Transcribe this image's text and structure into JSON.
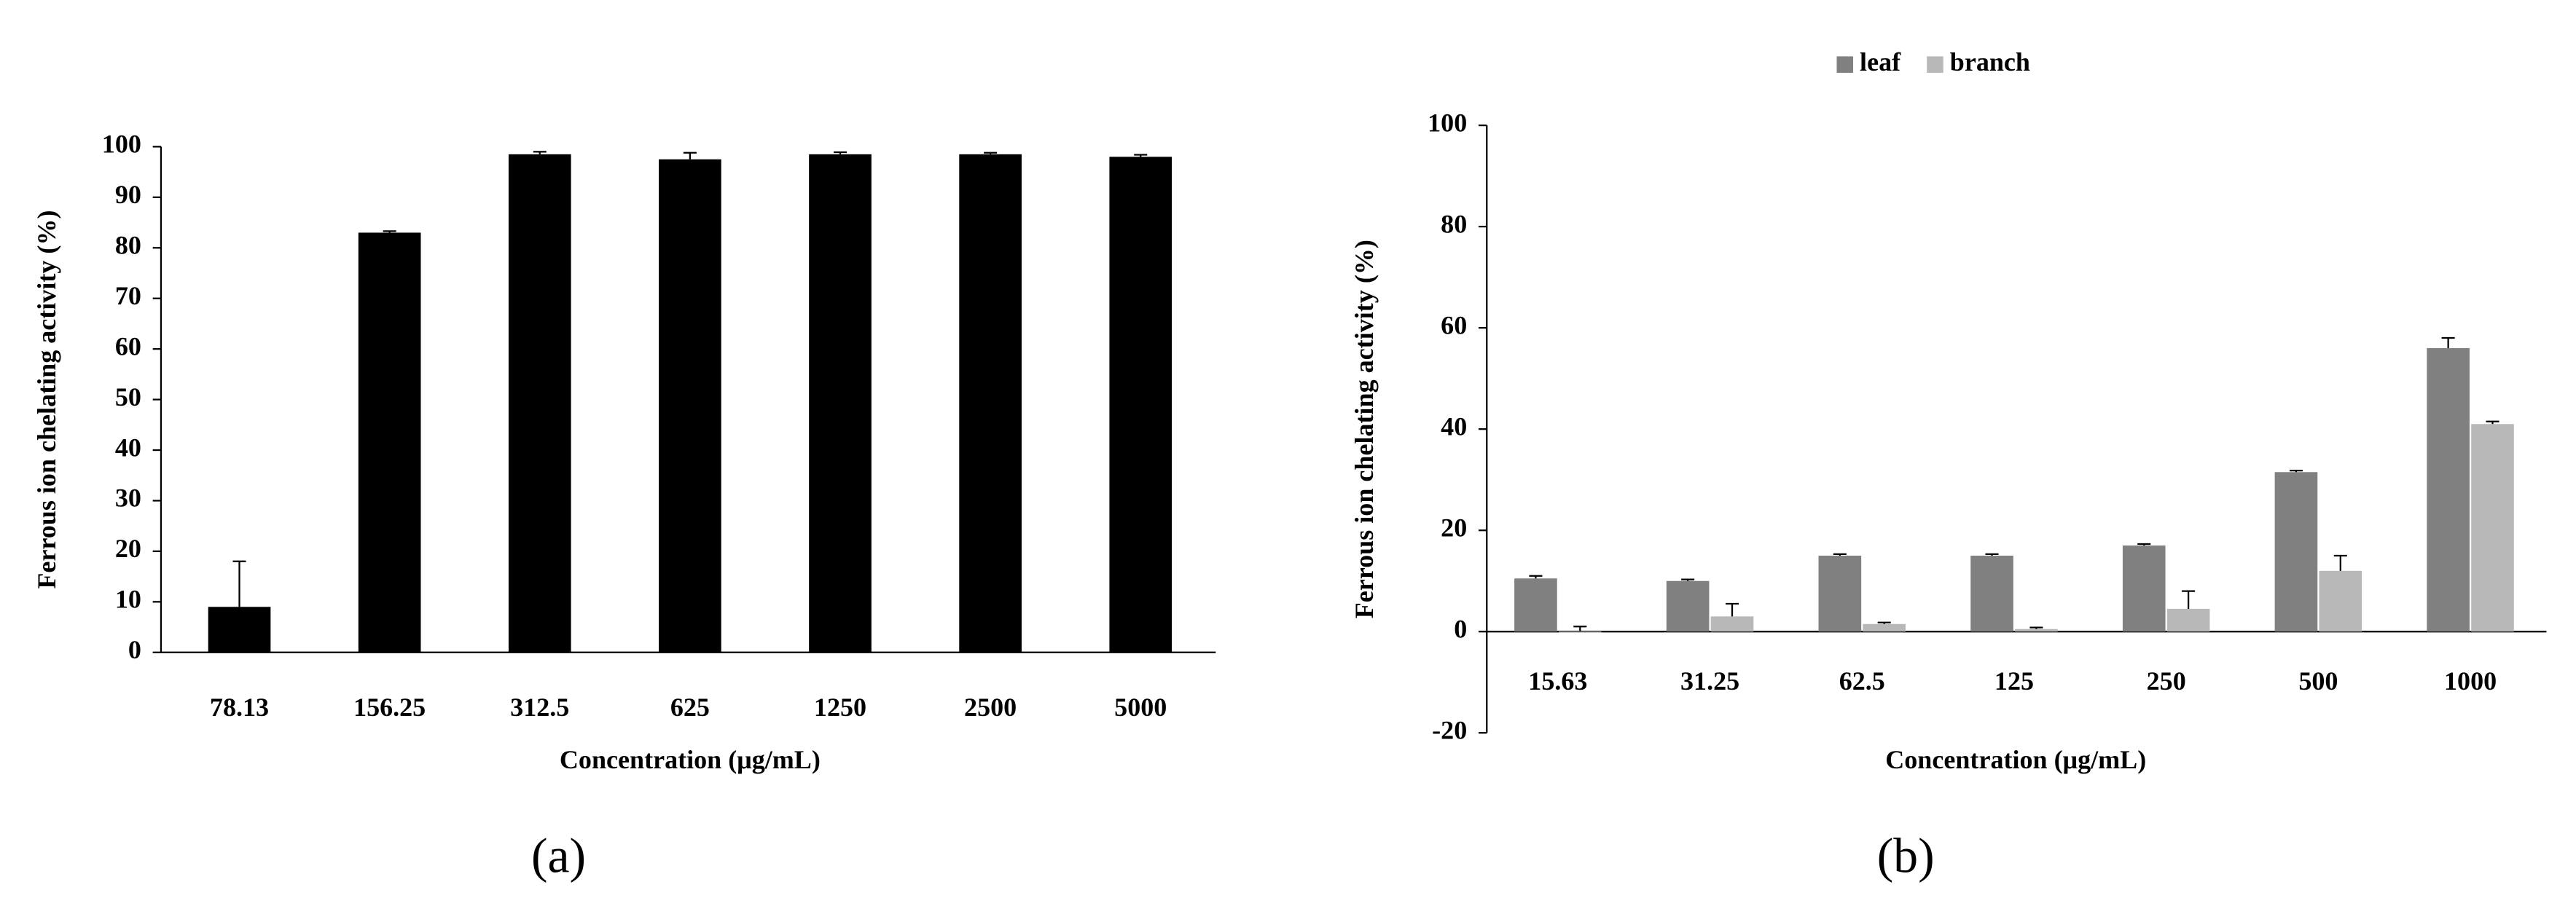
{
  "chart_data": [
    {
      "type": "bar",
      "caption": "(a)",
      "x_label": "Concentration (μg/mL)",
      "y_label": "Ferrous ion chelating activity (%)",
      "categories": [
        "78.13",
        "156.25",
        "312.5",
        "625",
        "1250",
        "2500",
        "5000"
      ],
      "values": [
        9,
        83,
        98.5,
        97.5,
        98.5,
        98.5,
        98
      ],
      "errors": [
        9,
        0.3,
        0.5,
        1.3,
        0.4,
        0.3,
        0.4
      ],
      "color": "#000000",
      "ylim": [
        0,
        100
      ],
      "yticks": [
        0,
        10,
        20,
        30,
        40,
        50,
        60,
        70,
        80,
        90,
        100
      ],
      "grid": false
    },
    {
      "type": "bar",
      "caption": "(b)",
      "x_label": "Concentration (μg/mL)",
      "y_label": "Ferrous ion chelating activity (%)",
      "categories": [
        "15.63",
        "31.25",
        "62.5",
        "125",
        "250",
        "500",
        "1000"
      ],
      "series": [
        {
          "name": "leaf",
          "color": "#808080",
          "values": [
            10.5,
            10,
            15,
            15,
            17,
            31.5,
            56
          ],
          "errors": [
            0.5,
            0.3,
            0.3,
            0.3,
            0.3,
            0.3,
            2
          ]
        },
        {
          "name": "branch",
          "color": "#b8b8b8",
          "values": [
            0,
            3,
            1.5,
            0.5,
            4.5,
            12,
            41
          ],
          "errors": [
            1,
            2.5,
            0.3,
            0.3,
            3.5,
            3,
            0.5
          ]
        }
      ],
      "ylim": [
        -20,
        100
      ],
      "yticks": [
        -20,
        0,
        20,
        40,
        60,
        80,
        100
      ],
      "grid": false,
      "legend": "top"
    }
  ]
}
